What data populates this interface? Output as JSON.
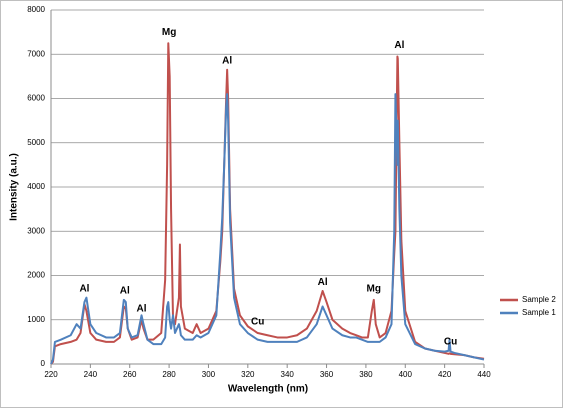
{
  "chart_data": {
    "type": "line",
    "x_label": "Wavelength (nm)",
    "y_label": "Intensity (a.u.)",
    "x": [
      220,
      221,
      222,
      225,
      230,
      233,
      235,
      237,
      238,
      240,
      243,
      248,
      252,
      255,
      257,
      258,
      259,
      261,
      264,
      266,
      267,
      269,
      272,
      276,
      278,
      279,
      279.6,
      280.3,
      281,
      282,
      283,
      285,
      285.5,
      286,
      288,
      292,
      294,
      296,
      300,
      304,
      306,
      307,
      308,
      309,
      309.5,
      310,
      311,
      313,
      316,
      320,
      325,
      330,
      335,
      340,
      345,
      350,
      355,
      358,
      360,
      363,
      368,
      372,
      375,
      378,
      381,
      383,
      384,
      385,
      387,
      390,
      393,
      394.4,
      395,
      396,
      396.2,
      397,
      398,
      400,
      405,
      410,
      415,
      420,
      422,
      422.5,
      423,
      425,
      430,
      435,
      440
    ],
    "series": [
      {
        "name": "Sample 2",
        "color": "#c0504d",
        "values": [
          0,
          50,
          400,
          450,
          500,
          550,
          700,
          1350,
          1200,
          700,
          550,
          500,
          500,
          600,
          1300,
          1250,
          800,
          550,
          600,
          1000,
          800,
          550,
          550,
          700,
          1900,
          4500,
          7250,
          6500,
          3500,
          1000,
          900,
          1500,
          2700,
          1300,
          800,
          700,
          900,
          700,
          800,
          1200,
          2300,
          3000,
          4500,
          6000,
          6650,
          6000,
          3500,
          1700,
          1100,
          850,
          700,
          650,
          600,
          600,
          650,
          800,
          1200,
          1650,
          1400,
          1000,
          800,
          700,
          650,
          600,
          600,
          1200,
          1450,
          900,
          600,
          700,
          1200,
          2500,
          3000,
          6950,
          6900,
          5000,
          2800,
          1200,
          500,
          350,
          300,
          250,
          230,
          240,
          230,
          220,
          200,
          150,
          120
        ]
      },
      {
        "name": "Sample 1",
        "color": "#4f81bd",
        "values": [
          0,
          100,
          500,
          550,
          650,
          900,
          800,
          1400,
          1500,
          900,
          700,
          600,
          600,
          700,
          1450,
          1400,
          800,
          600,
          650,
          1100,
          900,
          550,
          450,
          450,
          600,
          1300,
          1400,
          1000,
          800,
          1100,
          700,
          900,
          800,
          650,
          550,
          550,
          650,
          600,
          700,
          1100,
          2500,
          3300,
          4500,
          5800,
          6100,
          5500,
          3200,
          1500,
          900,
          700,
          550,
          500,
          500,
          500,
          500,
          600,
          900,
          1300,
          1100,
          800,
          650,
          600,
          600,
          550,
          500,
          500,
          500,
          500,
          500,
          600,
          900,
          3000,
          6100,
          4500,
          5500,
          3500,
          2000,
          900,
          450,
          350,
          300,
          280,
          300,
          550,
          280,
          250,
          200,
          150,
          100
        ]
      }
    ],
    "annotations": [
      {
        "text": "Al",
        "x": 237,
        "y": 1700
      },
      {
        "text": "Al",
        "x": 257.5,
        "y": 1650
      },
      {
        "text": "Al",
        "x": 266,
        "y": 1250
      },
      {
        "text": "Mg",
        "x": 280,
        "y": 7500
      },
      {
        "text": "Al",
        "x": 309.5,
        "y": 6850
      },
      {
        "text": "Cu",
        "x": 325,
        "y": 950
      },
      {
        "text": "Al",
        "x": 358,
        "y": 1850
      },
      {
        "text": "Mg",
        "x": 384,
        "y": 1700
      },
      {
        "text": "Al",
        "x": 397,
        "y": 7200
      },
      {
        "text": "Cu",
        "x": 423,
        "y": 500
      }
    ],
    "xlim": [
      220,
      440
    ],
    "xticks": [
      220,
      240,
      260,
      280,
      300,
      320,
      340,
      360,
      380,
      400,
      420,
      440
    ],
    "ylim": [
      0,
      8000
    ],
    "yticks": [
      0,
      1000,
      2000,
      3000,
      4000,
      5000,
      6000,
      7000,
      8000
    ],
    "grid": true,
    "legend": "right"
  }
}
